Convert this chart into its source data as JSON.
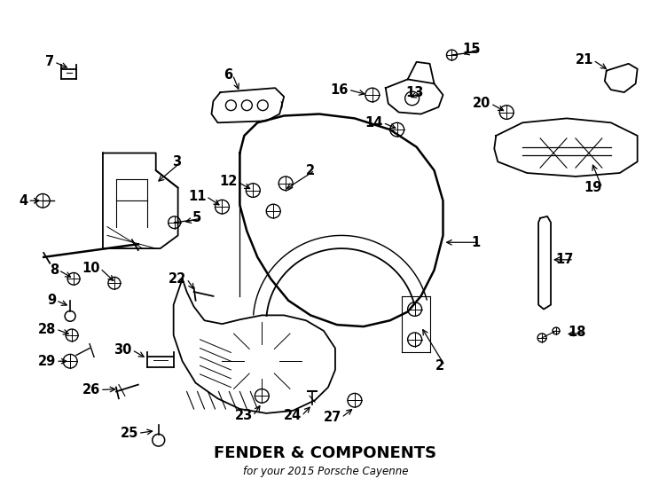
{
  "title": "FENDER & COMPONENTS",
  "subtitle": "for your 2015 Porsche Cayenne",
  "background_color": "#ffffff",
  "line_color": "#000000",
  "fig_width": 7.34,
  "fig_height": 5.4,
  "label_fontsize": 10.5
}
